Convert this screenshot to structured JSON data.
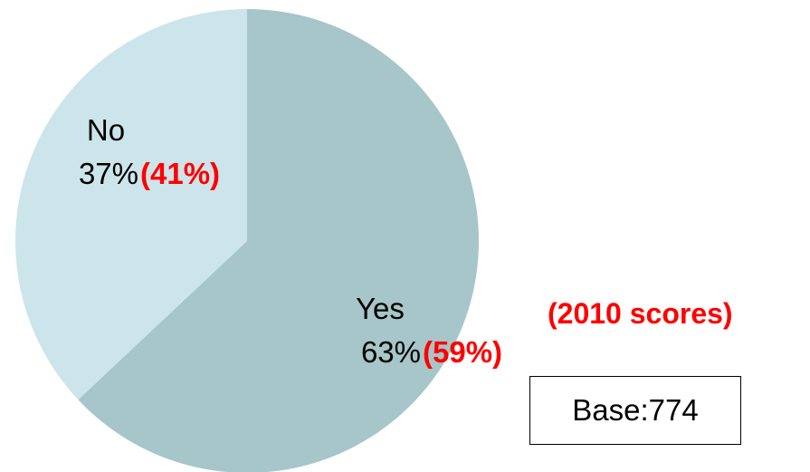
{
  "chart_data": {
    "type": "pie",
    "categories": [
      "Yes",
      "No"
    ],
    "values": [
      63,
      37
    ],
    "value_labels": [
      "63%",
      "37%"
    ],
    "previous_labels": [
      "(59%)",
      "(41%)"
    ],
    "colors": [
      "#a6c6c9",
      "#cce5ea"
    ],
    "previous_label_color": "#ff0000",
    "start_angle": "12 o'clock",
    "direction": "clockwise",
    "legend": "none"
  },
  "note": "(2010 scores)",
  "base": "Base:774"
}
